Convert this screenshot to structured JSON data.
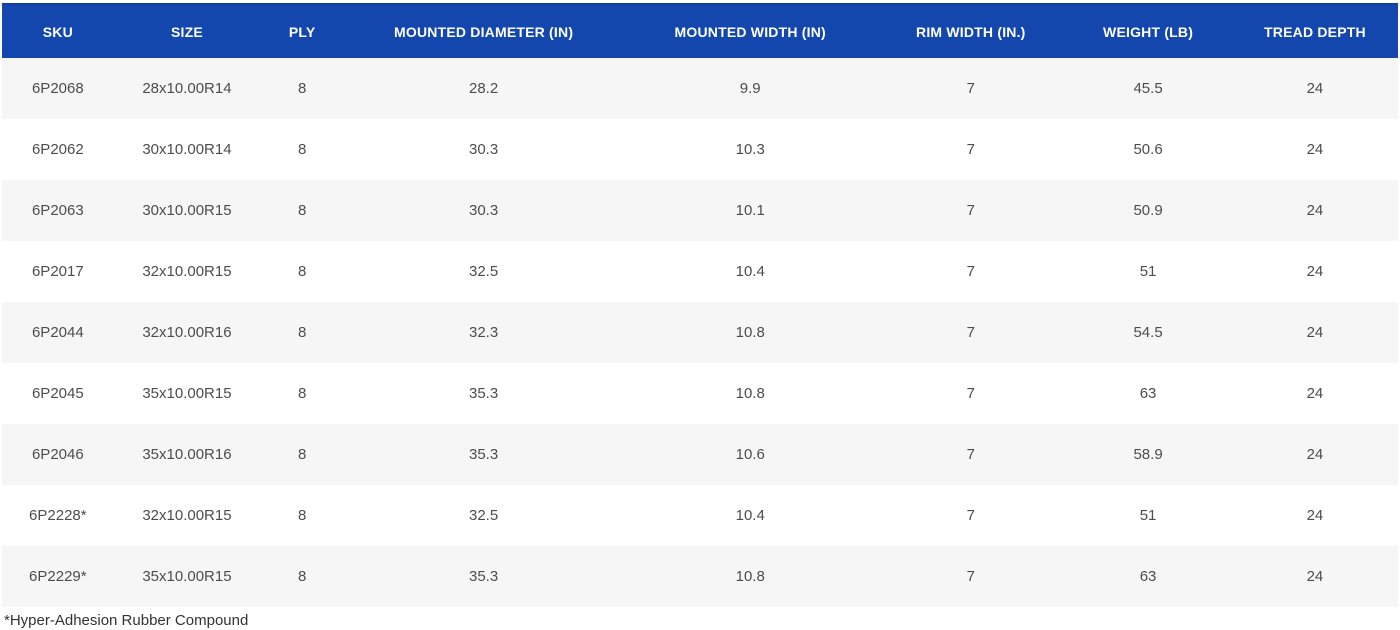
{
  "table": {
    "columns": [
      {
        "label": "SKU"
      },
      {
        "label": "SIZE"
      },
      {
        "label": "PLY"
      },
      {
        "label": "MOUNTED DIAMETER (IN)"
      },
      {
        "label": "MOUNTED WIDTH (IN)"
      },
      {
        "label": "RIM WIDTH (IN.)"
      },
      {
        "label": "WEIGHT (LB)"
      },
      {
        "label": "TREAD DEPTH"
      }
    ],
    "rows": [
      [
        "6P2068",
        "28x10.00R14",
        "8",
        "28.2",
        "9.9",
        "7",
        "45.5",
        "24"
      ],
      [
        "6P2062",
        "30x10.00R14",
        "8",
        "30.3",
        "10.3",
        "7",
        "50.6",
        "24"
      ],
      [
        "6P2063",
        "30x10.00R15",
        "8",
        "30.3",
        "10.1",
        "7",
        "50.9",
        "24"
      ],
      [
        "6P2017",
        "32x10.00R15",
        "8",
        "32.5",
        "10.4",
        "7",
        "51",
        "24"
      ],
      [
        "6P2044",
        "32x10.00R16",
        "8",
        "32.3",
        "10.8",
        "7",
        "54.5",
        "24"
      ],
      [
        "6P2045",
        "35x10.00R15",
        "8",
        "35.3",
        "10.8",
        "7",
        "63",
        "24"
      ],
      [
        "6P2046",
        "35x10.00R16",
        "8",
        "35.3",
        "10.6",
        "7",
        "58.9",
        "24"
      ],
      [
        "6P2228*",
        "32x10.00R15",
        "8",
        "32.5",
        "10.4",
        "7",
        "51",
        "24"
      ],
      [
        "6P2229*",
        "35x10.00R15",
        "8",
        "35.3",
        "10.8",
        "7",
        "63",
        "24"
      ]
    ],
    "footnote": "*Hyper-Adhesion Rubber Compound"
  },
  "colors": {
    "header_bg": "#1347ad",
    "header_text": "#ffffff",
    "row_alt_bg": "#f6f6f6",
    "row_bg": "#ffffff",
    "body_text": "#4d4d4d",
    "footnote_text": "#333333"
  }
}
